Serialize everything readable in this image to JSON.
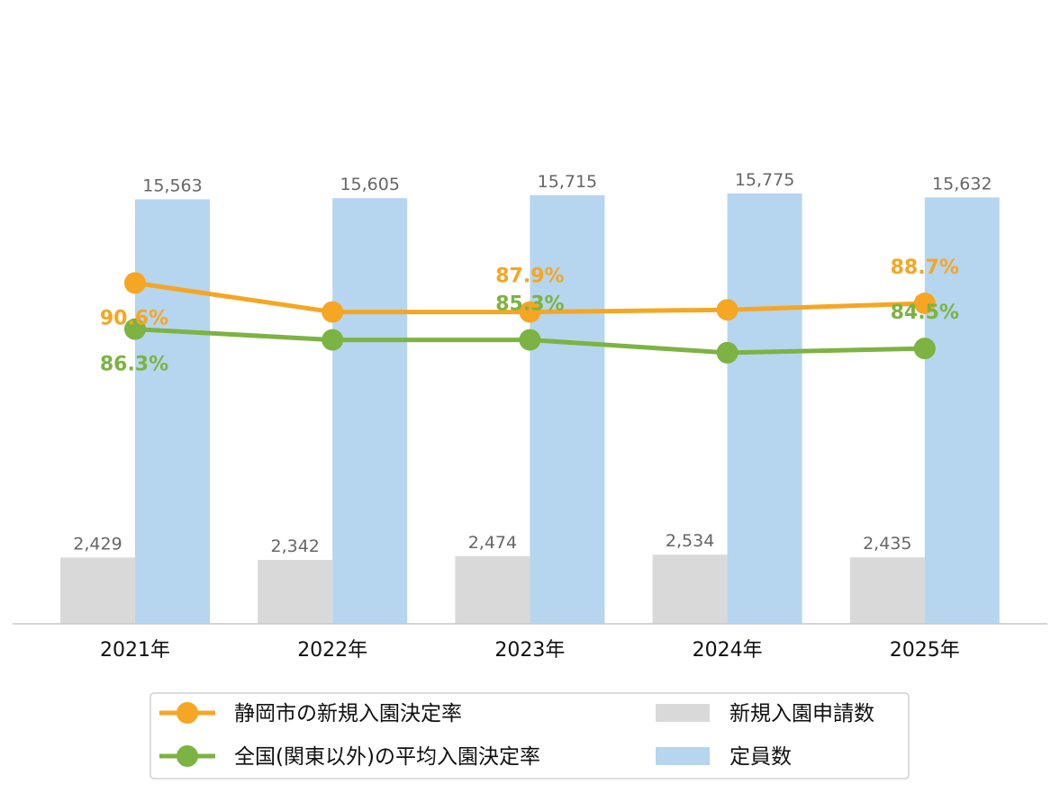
{
  "chart_data": {
    "type": "bar",
    "categories": [
      "2021年",
      "2022年",
      "2023年",
      "2024年",
      "2025年"
    ],
    "bar_series": [
      {
        "name": "新規入園申請数",
        "color": "#d9d9d9",
        "values": [
          2429,
          2342,
          2474,
          2534,
          2435
        ],
        "labels": [
          "2,429",
          "2,342",
          "2,474",
          "2,534",
          "2,435"
        ]
      },
      {
        "name": "定員数",
        "color": "#b6d5ef",
        "values": [
          15563,
          15605,
          15715,
          15775,
          15632
        ],
        "labels": [
          "15,563",
          "15,605",
          "15,715",
          "15,775",
          "15,632"
        ]
      }
    ],
    "line_series": [
      {
        "name": "静岡市の新規入園決定率",
        "color": "#f5a623",
        "values": [
          90.6,
          87.9,
          87.9,
          88.1,
          88.7
        ],
        "point_labels": [
          "90.6%",
          "",
          "87.9%",
          "",
          "88.7%"
        ]
      },
      {
        "name": "全国(関東以外)の平均入園決定率",
        "color": "#7cb342",
        "values": [
          86.3,
          85.3,
          85.3,
          84.1,
          84.5
        ],
        "point_labels": [
          "86.3%",
          "",
          "85.3%",
          "",
          "84.5%"
        ]
      }
    ],
    "bar_ylim": [
      0,
      15775
    ],
    "line_ylim": [
      70,
      96
    ],
    "grid": false,
    "legend_position": "bottom"
  }
}
